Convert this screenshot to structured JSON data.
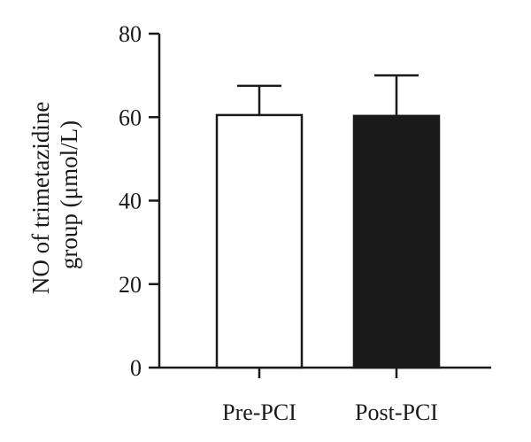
{
  "chart_data": {
    "type": "bar",
    "categories": [
      "Pre-PCI",
      "Post-PCI"
    ],
    "values": [
      60.5,
      60.3
    ],
    "error_upper": [
      67.5,
      70.0
    ],
    "bar_fill_colors": [
      "#ffffff",
      "#1a1a1a"
    ],
    "ylabel_lines": [
      "NO of trimetazidine",
      "group (μmol/L)"
    ],
    "ylim": [
      0,
      80
    ],
    "yticks": [
      0,
      20,
      40,
      60,
      80
    ],
    "ytick_labels": [
      "0",
      "20",
      "40",
      "60",
      "80"
    ],
    "grid": false,
    "legend": "none"
  }
}
